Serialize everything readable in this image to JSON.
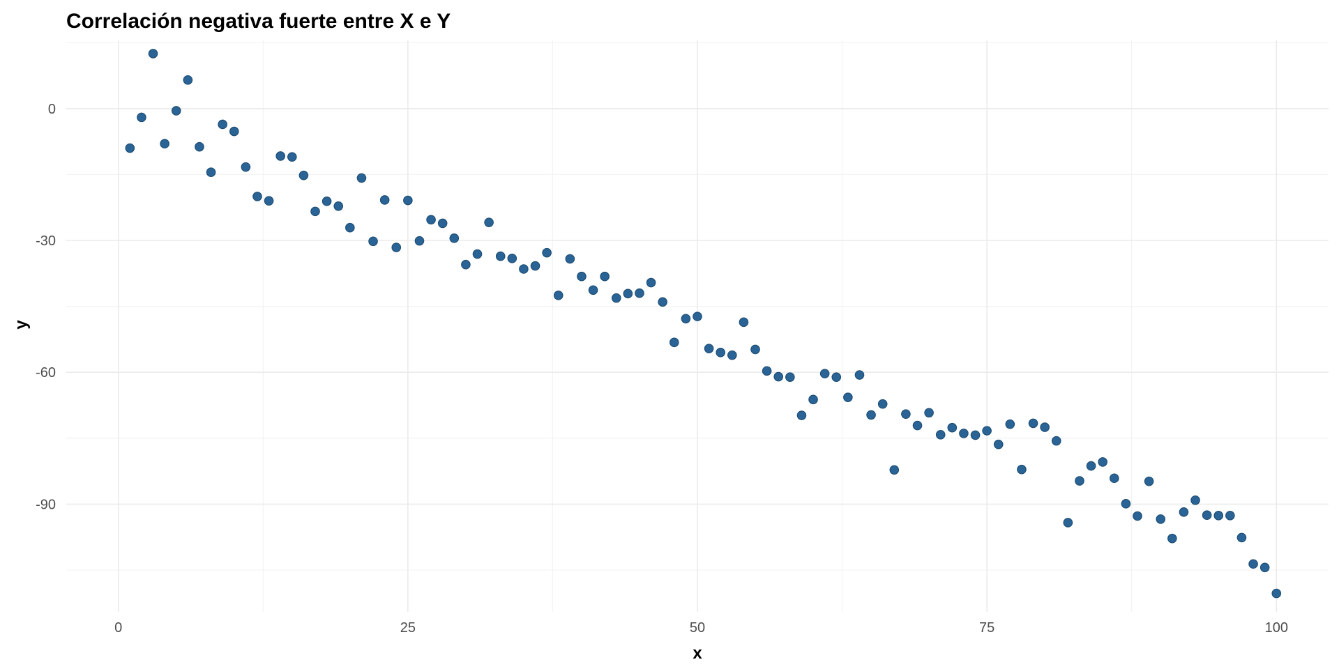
{
  "chart_data": {
    "type": "scatter",
    "title": "Correlación negativa fuerte entre X e Y",
    "xlabel": "x",
    "ylabel": "y",
    "xlim": [
      -4.5,
      104.5
    ],
    "ylim": [
      -114.5,
      15.5
    ],
    "xticks": [
      0,
      25,
      50,
      75,
      100
    ],
    "xtick_labels": [
      "0",
      "25",
      "50",
      "75",
      "100"
    ],
    "yticks": [
      0,
      -30,
      -60,
      -90
    ],
    "ytick_labels": [
      "0",
      "-30",
      "-60",
      "-90"
    ],
    "grid": true,
    "legend": "none",
    "point_color": "#2a6496",
    "point_stroke": "#1f4e74",
    "series": [
      {
        "x": [
          1,
          2,
          3,
          4,
          5,
          6,
          7,
          8,
          9,
          10,
          11,
          12,
          13,
          14,
          15,
          16,
          17,
          18,
          19,
          20,
          21,
          22,
          23,
          24,
          25,
          26,
          27,
          28,
          29,
          30,
          31,
          32,
          33,
          34,
          35,
          36,
          37,
          38,
          39,
          40,
          41,
          42,
          43,
          44,
          45,
          46,
          47,
          48,
          49,
          50,
          51,
          52,
          53,
          54,
          55,
          56,
          57,
          58,
          59,
          60,
          61,
          62,
          63,
          64,
          65,
          66,
          67,
          68,
          69,
          70,
          71,
          72,
          73,
          74,
          75,
          76,
          77,
          78,
          79,
          80,
          81,
          82,
          83,
          84,
          85,
          86,
          87,
          88,
          89,
          90,
          91,
          92,
          93,
          94,
          95,
          96,
          97,
          98,
          99,
          100
        ],
        "y": [
          -9,
          -2,
          12.5,
          -8,
          -0.5,
          6.5,
          -8.7,
          -14.5,
          -3.6,
          -5.2,
          -13.3,
          -20,
          -21,
          -10.8,
          -11,
          -15.2,
          -23.4,
          -21.1,
          -22.2,
          -27.1,
          -15.8,
          -30.2,
          -20.8,
          -31.6,
          -20.9,
          -30.1,
          -25.3,
          -26.1,
          -29.5,
          -35.5,
          -33.1,
          -25.9,
          -33.6,
          -34.1,
          -36.5,
          -35.8,
          -32.8,
          -42.5,
          -34.2,
          -38.2,
          -41.3,
          -38.2,
          -43.1,
          -42.1,
          -42.0,
          -39.6,
          -44.0,
          -53.2,
          -47.8,
          -47.3,
          -54.6,
          -55.5,
          -56.1,
          -48.6,
          -54.8,
          -59.7,
          -61.0,
          -61.1,
          -69.8,
          -66.2,
          -60.3,
          -61.1,
          -65.7,
          -60.6,
          -69.7,
          -67.2,
          -82.2,
          -69.5,
          -72.1,
          -69.2,
          -74.2,
          -72.6,
          -73.9,
          -74.3,
          -73.3,
          -76.4,
          -71.8,
          -82.1,
          -71.6,
          -72.5,
          -75.6,
          -94.2,
          -84.7,
          -81.3,
          -80.4,
          -84.1,
          -89.9,
          -92.7,
          -84.8,
          -93.4,
          -97.8,
          -91.8,
          -89.1,
          -92.5,
          -92.6,
          -92.6,
          -97.6,
          -103.6,
          -104.4,
          -110.3
        ]
      }
    ]
  }
}
